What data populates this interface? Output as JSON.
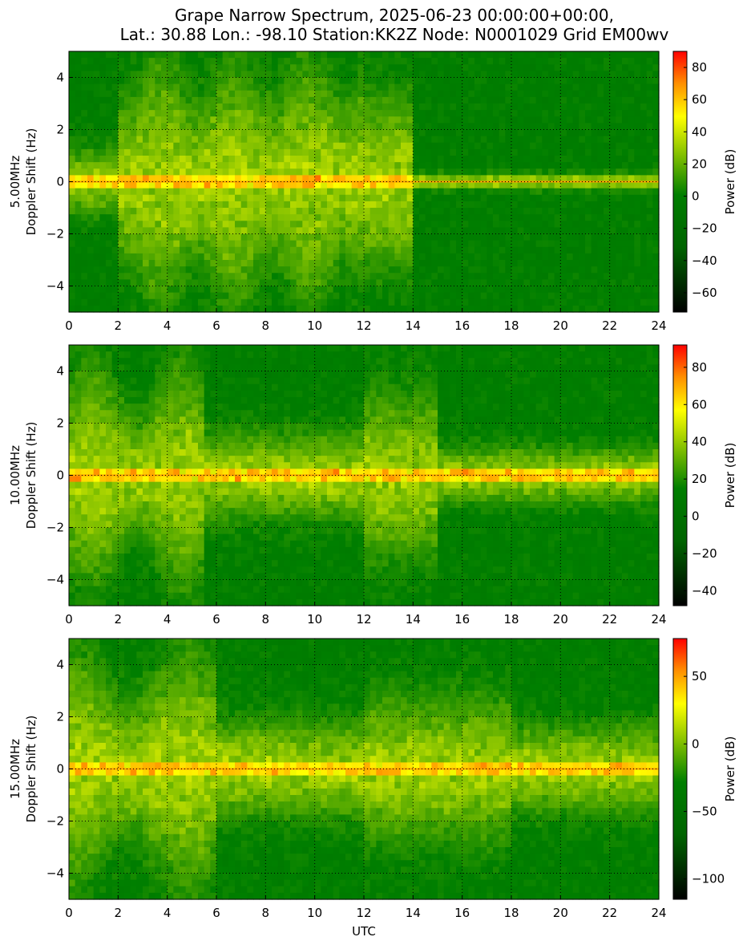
{
  "figure": {
    "title_line1": "Grape Narrow Spectrum, 2025-06-23 00:00:00+00:00,",
    "title_line2": "Lat.: 30.88 Lon.: -98.10 Station:KK2Z Node: N0001029 Grid EM00wv",
    "xlabel": "UTC"
  },
  "colors": {
    "cmap": [
      "#000000",
      "#006400",
      "#007f00",
      "#ffff00",
      "#ff8c00",
      "#ff0000"
    ],
    "grid": "#000000"
  },
  "chart_data": [
    {
      "type": "heatmap",
      "ylabel_line1": "5.00MHz",
      "ylabel_line2": "Doppler Shift (Hz)",
      "xlim": [
        0,
        24
      ],
      "ylim": [
        -5,
        5
      ],
      "xticks": [
        "0",
        "2",
        "4",
        "6",
        "8",
        "10",
        "12",
        "14",
        "16",
        "18",
        "20",
        "22",
        "24"
      ],
      "yticks": [
        "4",
        "2",
        "0",
        "−2",
        "−4"
      ],
      "grid": true,
      "colorbar": {
        "label": "Power (dB)",
        "range": [
          -72,
          90
        ],
        "ticks": [
          "80",
          "60",
          "40",
          "20",
          "0",
          "−20",
          "−40",
          "−60"
        ]
      }
    },
    {
      "type": "heatmap",
      "ylabel_line1": "10.00MHz",
      "ylabel_line2": "Doppler Shift (Hz)",
      "xlim": [
        0,
        24
      ],
      "ylim": [
        -5,
        5
      ],
      "xticks": [
        "0",
        "2",
        "4",
        "6",
        "8",
        "10",
        "12",
        "14",
        "16",
        "18",
        "20",
        "22",
        "24"
      ],
      "yticks": [
        "4",
        "2",
        "0",
        "−2",
        "−4"
      ],
      "grid": true,
      "colorbar": {
        "label": "Power (dB)",
        "range": [
          -48,
          92
        ],
        "ticks": [
          "80",
          "60",
          "40",
          "20",
          "0",
          "−20",
          "−40"
        ]
      }
    },
    {
      "type": "heatmap",
      "ylabel_line1": "15.00MHz",
      "ylabel_line2": "Doppler Shift (Hz)",
      "xlim": [
        0,
        24
      ],
      "ylim": [
        -5,
        5
      ],
      "xticks": [
        "0",
        "2",
        "4",
        "6",
        "8",
        "10",
        "12",
        "14",
        "16",
        "18",
        "20",
        "22",
        "24"
      ],
      "yticks": [
        "4",
        "2",
        "0",
        "−2",
        "−4"
      ],
      "grid": true,
      "colorbar": {
        "label": "Power (dB)",
        "range": [
          -115,
          78
        ],
        "ticks": [
          "50",
          "0",
          "−50",
          "−100"
        ]
      }
    }
  ]
}
